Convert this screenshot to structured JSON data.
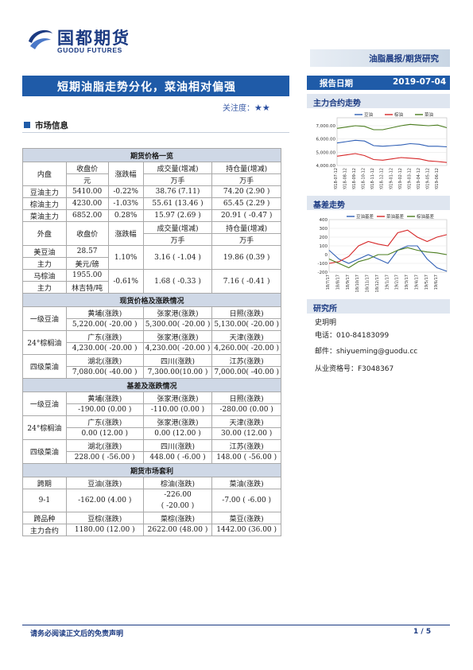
{
  "brand": {
    "name_cn": "国都期货",
    "name_en": "GUODU FUTURES"
  },
  "report_category": "油脂晨报/期货研究",
  "title": "短期油脂走势分化，菜油相对偏强",
  "report_date_label": "报告日期",
  "report_date": "2019-07-04",
  "attention_label": "关注度：",
  "attention_stars": "★★",
  "market_section_title": "市场信息",
  "futures_table": {
    "title": "期货价格一览",
    "domestic_header": [
      "内盘",
      "收盘价",
      "涨跌幅",
      "成交量(增减)",
      "持仓量(增减)"
    ],
    "domestic_header_sub": [
      "",
      "元",
      "",
      "万手",
      "万手"
    ],
    "domestic_rows": [
      [
        "豆油主力",
        "5410.00",
        "-0.22%",
        "38.76 (7.11)",
        "74.20 (2.90 )"
      ],
      [
        "棕油主力",
        "4230.00",
        "-1.03%",
        "55.61 (13.46 )",
        "65.45 (2.29 )"
      ],
      [
        "菜油主力",
        "6852.00",
        "0.28%",
        "15.97 (2.69 )",
        "20.91 ( -0.47 )"
      ]
    ],
    "foreign_header": [
      "外盘",
      "收盘价",
      "涨跌幅",
      "成交量(增减)",
      "持仓量(增减)"
    ],
    "foreign_header_sub": [
      "",
      "",
      "",
      "万手",
      "万手"
    ],
    "foreign_rows": [
      {
        "name1": "美豆油",
        "name2": "主力",
        "price1": "28.57",
        "price2": "美元/磅",
        "change": "1.10%",
        "volume": "3.16 ( -1.04 )",
        "oi": "19.86 (0.39 )"
      },
      {
        "name1": "马棕油",
        "name2": "主力",
        "price1": "1955.00",
        "price2": "林吉特/吨",
        "change": "-0.61%",
        "volume": "1.68 ( -0.33 )",
        "oi": "7.16 ( -0.41 )"
      }
    ]
  },
  "spot_table": {
    "title": "现货价格及涨跌情况",
    "groups": [
      {
        "name": "一级豆油",
        "headers": [
          "黄埔(涨跌)",
          "张家港(涨跌)",
          "日照(涨跌)"
        ],
        "values": [
          "5,220.00( -20.00 )",
          "5,300.00( -20.00 )",
          "5,130.00( -20.00 )"
        ]
      },
      {
        "name": "24°棕榈油",
        "headers": [
          "广东(涨跌)",
          "张家港(涨跌)",
          "天津(涨跌)"
        ],
        "values": [
          "4,230.00( -20.00 )",
          "4,230.00( -20.00 )",
          "4,260.00( -20.00 )"
        ]
      },
      {
        "name": "四级菜油",
        "headers": [
          "湖北(涨跌)",
          "四川(涨跌)",
          "江苏(涨跌)"
        ],
        "values": [
          "7,080.00( -40.00 )",
          "7,300.00(10.00 )",
          "7,000.00( -40.00 )"
        ]
      }
    ]
  },
  "basis_table": {
    "title": "基差及涨跌情况",
    "groups": [
      {
        "name": "一级豆油",
        "headers": [
          "黄埔(涨跌)",
          "张家港(涨跌)",
          "日照(涨跌)"
        ],
        "values": [
          "-190.00 (0.00 )",
          "-110.00 (0.00 )",
          "-280.00 (0.00 )"
        ]
      },
      {
        "name": "24°棕榈油",
        "headers": [
          "广东(涨跌)",
          "张家港(涨跌)",
          "天津(涨跌)"
        ],
        "values": [
          "0.00 (12.00 )",
          "0.00 (12.00 )",
          "30.00 (12.00 )"
        ]
      },
      {
        "name": "四级菜油",
        "headers": [
          "湖北(涨跌)",
          "四川(涨跌)",
          "江苏(涨跌)"
        ],
        "values": [
          "228.00 ( -56.00 )",
          "448.00 ( -6.00 )",
          "148.00 ( -56.00 )"
        ]
      }
    ]
  },
  "arbitrage_table": {
    "title": "期货市场套利",
    "header1": [
      "跨期",
      "豆油(涨跌)",
      "棕油(涨跌)",
      "菜油(涨跌)"
    ],
    "row1": [
      "9-1",
      "-162.00 (4.00 )",
      "-226.00",
      "( -20.00 )",
      "-7.00  ( -6.00 )"
    ],
    "header2": [
      "跨品种",
      "豆棕(涨跌)",
      "菜棕(涨跌)",
      "菜豆(涨跌)"
    ],
    "row2": [
      "主力合约",
      "1180.00 (12.00 )",
      "2622.00 (48.00 )",
      "1442.00 (36.00 )"
    ]
  },
  "main_chart": {
    "section_title": "主力合约走势",
    "legend": [
      "豆油",
      "棕油",
      "菜油"
    ],
    "colors": [
      "#2f5fb5",
      "#d62728",
      "#4b7d1f"
    ],
    "y_ticks": [
      "7,000.00",
      "6,000.00",
      "5,000.00",
      "4,000.00"
    ],
    "x_ticks": [
      "2018-07-12",
      "2018-08-12",
      "2018-09-12",
      "2018-10-12",
      "2018-11-12",
      "2018-12-12",
      "2019-01-12",
      "2019-02-12",
      "2019-03-12",
      "2019-04-12",
      "2019-05-12",
      "2019-06-12"
    ]
  },
  "chart_data": [
    {
      "type": "line",
      "title": "",
      "ylim": [
        4000,
        7600
      ],
      "x": [
        "2018-07-12",
        "2018-08-12",
        "2018-09-12",
        "2018-10-12",
        "2018-11-12",
        "2018-12-12",
        "2019-01-12",
        "2019-02-12",
        "2019-03-12",
        "2019-04-12",
        "2019-05-12",
        "2019-06-12",
        "2019-07-03"
      ],
      "series": [
        {
          "name": "豆油",
          "values": [
            5700,
            5800,
            5900,
            5850,
            5500,
            5450,
            5500,
            5550,
            5650,
            5600,
            5450,
            5450,
            5410
          ]
        },
        {
          "name": "棕油",
          "values": [
            4700,
            4800,
            4900,
            4750,
            4450,
            4400,
            4500,
            4600,
            4550,
            4500,
            4350,
            4300,
            4230
          ]
        },
        {
          "name": "菜油",
          "values": [
            6800,
            6900,
            7000,
            6950,
            6700,
            6700,
            6850,
            7000,
            7100,
            7050,
            7000,
            7050,
            6852
          ]
        }
      ]
    },
    {
      "type": "line",
      "title": "",
      "ylim": [
        -200,
        400
      ],
      "x": [
        "18/7/17",
        "18/8/17",
        "18/9/17",
        "18/10/17",
        "18/11/17",
        "18/12/17",
        "19/1/17",
        "19/2/17",
        "19/3/17",
        "19/4/17",
        "19/5/17",
        "19/6/17",
        "19/7/3"
      ],
      "series": [
        {
          "name": "豆油基差",
          "values": [
            50,
            -50,
            -100,
            -50,
            0,
            -50,
            -100,
            50,
            100,
            100,
            -50,
            -150,
            -190
          ]
        },
        {
          "name": "菜油基差",
          "values": [
            -100,
            -80,
            -20,
            100,
            150,
            120,
            100,
            250,
            280,
            200,
            150,
            200,
            228
          ]
        },
        {
          "name": "棕油基差",
          "values": [
            -50,
            -100,
            -150,
            -80,
            -50,
            0,
            0,
            50,
            80,
            50,
            30,
            20,
            0
          ]
        }
      ]
    }
  ],
  "basis_chart": {
    "section_title": "基差走势",
    "legend": [
      "豆油基差",
      "菜油基差",
      "棕油基差"
    ],
    "colors": [
      "#2f5fb5",
      "#d62728",
      "#4b7d1f"
    ],
    "y_ticks": [
      "400",
      "300",
      "200",
      "100",
      "0",
      "-100",
      "-200"
    ],
    "x_ticks": [
      "18/7/17",
      "18/8/17",
      "18/9/17",
      "18/10/17",
      "18/11/17",
      "18/12/17",
      "19/1/17",
      "19/2/17",
      "19/3/17",
      "19/4/17",
      "19/5/17",
      "19/6/17"
    ]
  },
  "research": {
    "section_title": "研究所",
    "author": "史玥明",
    "phone": "电话：010-84183099",
    "email": "邮件：shiyueming@guodu.cc",
    "license": "从业资格号：F3048367"
  },
  "footer": {
    "disclaimer": "请务必阅读正文后的免责声明",
    "page": "1 / 5"
  }
}
